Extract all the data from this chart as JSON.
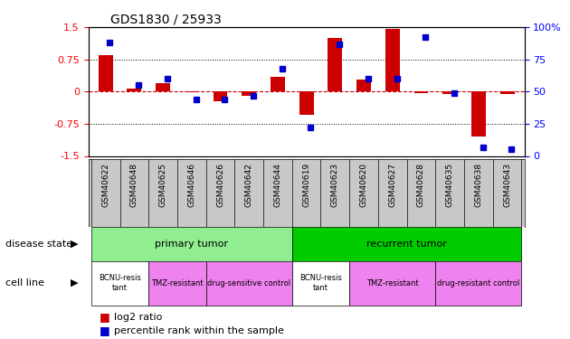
{
  "title": "GDS1830 / 25933",
  "samples": [
    "GSM40622",
    "GSM40648",
    "GSM40625",
    "GSM40646",
    "GSM40626",
    "GSM40642",
    "GSM40644",
    "GSM40619",
    "GSM40623",
    "GSM40620",
    "GSM40627",
    "GSM40628",
    "GSM40635",
    "GSM40638",
    "GSM40643"
  ],
  "log2_ratio": [
    0.85,
    0.07,
    0.2,
    -0.02,
    -0.22,
    -0.1,
    0.35,
    -0.55,
    1.25,
    0.28,
    1.45,
    -0.03,
    -0.05,
    -1.05,
    -0.05
  ],
  "percentile_rank": [
    88,
    55,
    60,
    44,
    44,
    47,
    68,
    22,
    87,
    60,
    60,
    92,
    49,
    7,
    5
  ],
  "ylim": [
    -1.5,
    1.5
  ],
  "y_ticks_left": [
    -1.5,
    -0.75,
    0,
    0.75,
    1.5
  ],
  "y_ticks_right": [
    0,
    25,
    50,
    75,
    100
  ],
  "disease_state_groups": [
    {
      "label": "primary tumor",
      "start": 0,
      "end": 7,
      "color": "#90EE90"
    },
    {
      "label": "recurrent tumor",
      "start": 7,
      "end": 15,
      "color": "#00CC00"
    }
  ],
  "cell_line_groups": [
    {
      "label": "BCNU-resis\ntant",
      "start": 0,
      "end": 2,
      "color": "#FFFFFF"
    },
    {
      "label": "TMZ-resistant",
      "start": 2,
      "end": 4,
      "color": "#EE82EE"
    },
    {
      "label": "drug-sensitive control",
      "start": 4,
      "end": 7,
      "color": "#EE82EE"
    },
    {
      "label": "BCNU-resis\ntant",
      "start": 7,
      "end": 9,
      "color": "#FFFFFF"
    },
    {
      "label": "TMZ-resistant",
      "start": 9,
      "end": 12,
      "color": "#EE82EE"
    },
    {
      "label": "drug-resistant control",
      "start": 12,
      "end": 15,
      "color": "#EE82EE"
    }
  ],
  "bar_color": "#CC0000",
  "dot_color": "#0000CC",
  "zero_line_color": "#CC0000",
  "dotted_line_color": "#000000",
  "background_color": "#FFFFFF",
  "disease_state_label": "disease state",
  "cell_line_label": "cell line",
  "legend_log2": "log2 ratio",
  "legend_pct": "percentile rank within the sample"
}
